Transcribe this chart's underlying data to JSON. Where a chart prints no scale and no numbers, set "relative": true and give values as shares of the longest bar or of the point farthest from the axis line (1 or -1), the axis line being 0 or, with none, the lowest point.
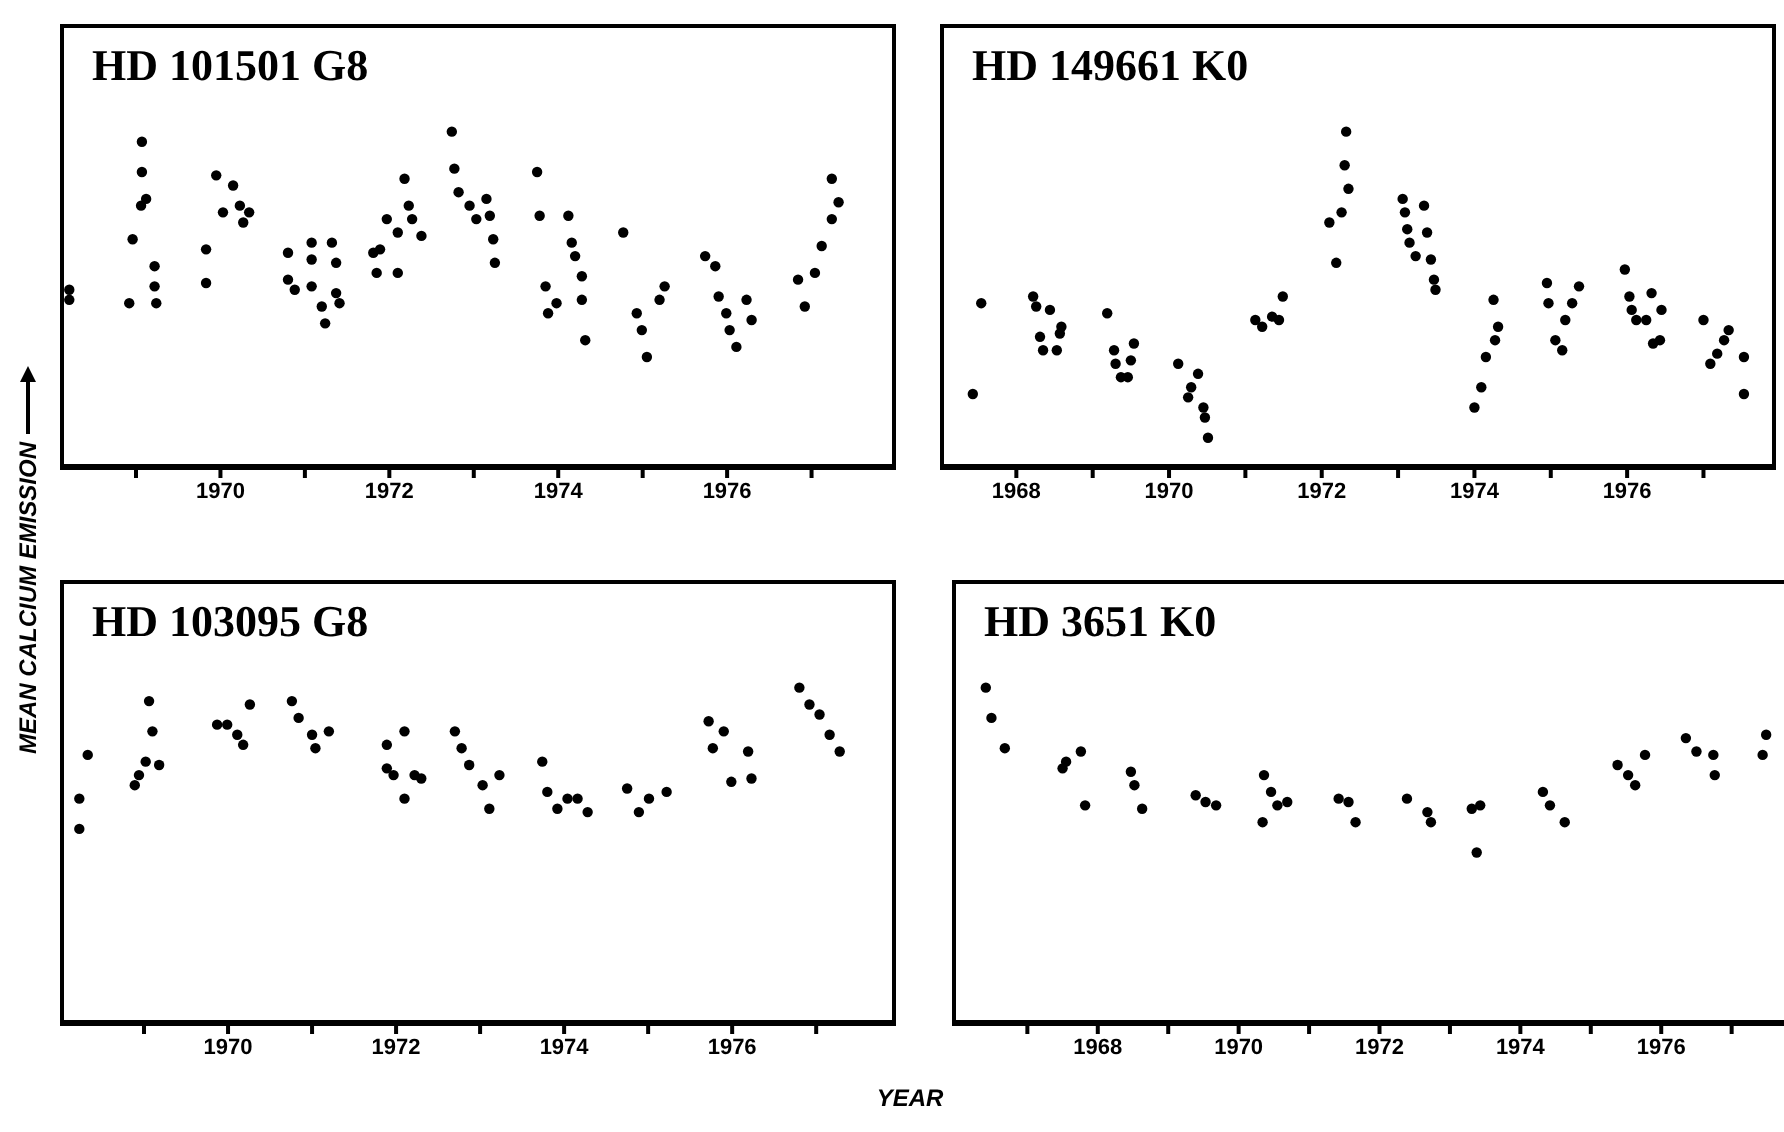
{
  "chart_data": [
    {
      "type": "scatter",
      "title": "HD 101501 G8",
      "ylabel": "MEAN CALCIUM EMISSION",
      "relative": true,
      "marker": "circle",
      "color": "#000000",
      "xlim": [
        1968.1,
        1978.0
      ],
      "xticks": [
        {
          "value": 1969,
          "label": null
        },
        1970,
        {
          "value": 1971,
          "label": null
        },
        1972,
        {
          "value": 1973,
          "label": null
        },
        1974,
        {
          "value": 1975,
          "label": null
        },
        1976,
        {
          "value": 1977,
          "label": null
        }
      ],
      "x": [
        1968.21,
        1968.21,
        1968.92,
        1968.96,
        1969.06,
        1969.07,
        1969.07,
        1969.12,
        1969.22,
        1969.22,
        1969.24,
        1969.83,
        1969.83,
        1969.95,
        1970.03,
        1970.15,
        1970.23,
        1970.27,
        1970.34,
        1970.8,
        1970.8,
        1970.88,
        1971.08,
        1971.08,
        1971.08,
        1971.2,
        1971.24,
        1971.32,
        1971.37,
        1971.37,
        1971.41,
        1971.81,
        1971.89,
        1971.97,
        1971.85,
        1972.1,
        1972.1,
        1972.18,
        1972.23,
        1972.27,
        1972.38,
        1972.74,
        1972.77,
        1972.82,
        1972.95,
        1973.03,
        1973.15,
        1973.19,
        1973.23,
        1973.25,
        1973.75,
        1973.78,
        1973.85,
        1973.88,
        1973.98,
        1974.12,
        1974.16,
        1974.2,
        1974.28,
        1974.28,
        1974.32,
        1974.77,
        1974.93,
        1974.99,
        1975.05,
        1975.2,
        1975.26,
        1975.74,
        1975.86,
        1975.9,
        1975.99,
        1976.03,
        1976.11,
        1976.23,
        1976.29,
        1976.84,
        1976.92,
        1977.04,
        1977.12,
        1977.24,
        1977.32,
        1977.24
      ],
      "values": [
        0.53,
        0.5,
        0.49,
        0.68,
        0.78,
        0.88,
        0.97,
        0.8,
        0.6,
        0.54,
        0.49,
        0.65,
        0.55,
        0.87,
        0.76,
        0.84,
        0.78,
        0.73,
        0.76,
        0.64,
        0.56,
        0.53,
        0.67,
        0.62,
        0.54,
        0.48,
        0.43,
        0.67,
        0.61,
        0.52,
        0.49,
        0.64,
        0.65,
        0.74,
        0.58,
        0.58,
        0.7,
        0.86,
        0.78,
        0.74,
        0.69,
        1.0,
        0.89,
        0.82,
        0.78,
        0.74,
        0.8,
        0.75,
        0.68,
        0.61,
        0.88,
        0.75,
        0.54,
        0.46,
        0.49,
        0.75,
        0.67,
        0.63,
        0.57,
        0.5,
        0.38,
        0.7,
        0.46,
        0.41,
        0.33,
        0.5,
        0.54,
        0.63,
        0.6,
        0.51,
        0.46,
        0.41,
        0.36,
        0.5,
        0.44,
        0.56,
        0.48,
        0.58,
        0.66,
        0.74,
        0.79,
        0.86
      ]
    },
    {
      "type": "scatter",
      "title": "HD 149661 K0",
      "relative": true,
      "marker": "circle",
      "color": "#000000",
      "xlim": [
        1967.0,
        1977.95
      ],
      "xticks": [
        1968,
        {
          "value": 1969,
          "label": null
        },
        1970,
        {
          "value": 1971,
          "label": null
        },
        1972,
        {
          "value": 1973,
          "label": null
        },
        1974,
        {
          "value": 1975,
          "label": null
        },
        1976,
        {
          "value": 1977,
          "label": null
        }
      ],
      "x": [
        1967.43,
        1967.54,
        1968.22,
        1968.26,
        1968.31,
        1968.35,
        1968.44,
        1968.53,
        1968.57,
        1968.59,
        1969.19,
        1969.28,
        1969.3,
        1969.37,
        1969.54,
        1969.5,
        1969.46,
        1970.12,
        1970.25,
        1970.29,
        1970.38,
        1970.45,
        1970.47,
        1970.51,
        1971.13,
        1971.22,
        1971.35,
        1971.49,
        1971.44,
        1972.1,
        1972.19,
        1972.26,
        1972.3,
        1972.32,
        1972.35,
        1973.06,
        1973.09,
        1973.12,
        1973.15,
        1973.23,
        1973.34,
        1973.38,
        1973.43,
        1973.47,
        1973.49,
        1974.0,
        1974.09,
        1974.15,
        1974.27,
        1974.31,
        1974.25,
        1974.95,
        1974.97,
        1975.06,
        1975.15,
        1975.19,
        1975.28,
        1975.37,
        1975.97,
        1976.03,
        1976.06,
        1976.12,
        1976.25,
        1976.32,
        1976.34,
        1976.43,
        1976.45,
        1977.0,
        1977.09,
        1977.18,
        1977.27,
        1977.33,
        1977.53,
        1977.53
      ],
      "values": [
        0.22,
        0.49,
        0.51,
        0.48,
        0.39,
        0.35,
        0.47,
        0.35,
        0.4,
        0.42,
        0.46,
        0.35,
        0.31,
        0.27,
        0.37,
        0.32,
        0.27,
        0.31,
        0.21,
        0.24,
        0.28,
        0.18,
        0.15,
        0.09,
        0.44,
        0.42,
        0.45,
        0.51,
        0.44,
        0.73,
        0.61,
        0.76,
        0.9,
        1.0,
        0.83,
        0.8,
        0.76,
        0.71,
        0.67,
        0.63,
        0.78,
        0.7,
        0.62,
        0.56,
        0.53,
        0.18,
        0.24,
        0.33,
        0.38,
        0.42,
        0.5,
        0.55,
        0.49,
        0.38,
        0.35,
        0.44,
        0.49,
        0.54,
        0.59,
        0.51,
        0.47,
        0.44,
        0.44,
        0.52,
        0.37,
        0.38,
        0.47,
        0.44,
        0.31,
        0.34,
        0.38,
        0.41,
        0.33,
        0.22
      ]
    },
    {
      "type": "scatter",
      "title": "HD 103095 G8",
      "xlabel": "YEAR",
      "relative": true,
      "marker": "circle",
      "color": "#000000",
      "xlim": [
        1968.0,
        1977.95
      ],
      "xticks": [
        {
          "value": 1969,
          "label": null
        },
        1970,
        {
          "value": 1971,
          "label": null
        },
        1972,
        {
          "value": 1973,
          "label": null
        },
        1974,
        {
          "value": 1975,
          "label": null
        },
        1976,
        {
          "value": 1977,
          "label": null
        }
      ],
      "x": [
        1968.23,
        1968.23,
        1968.33,
        1968.89,
        1968.94,
        1969.02,
        1969.1,
        1969.18,
        1969.06,
        1969.87,
        1969.99,
        1970.11,
        1970.18,
        1970.26,
        1970.76,
        1970.84,
        1971.0,
        1971.04,
        1971.2,
        1971.89,
        1971.89,
        1971.97,
        1972.1,
        1972.1,
        1972.22,
        1972.3,
        1972.7,
        1972.78,
        1972.87,
        1973.03,
        1973.11,
        1973.23,
        1973.74,
        1973.8,
        1973.92,
        1974.04,
        1974.16,
        1974.28,
        1974.75,
        1974.89,
        1975.01,
        1975.22,
        1975.72,
        1975.77,
        1975.9,
        1975.99,
        1976.19,
        1976.23,
        1976.8,
        1976.92,
        1977.04,
        1977.16,
        1977.28
      ],
      "values": [
        0.67,
        0.58,
        0.8,
        0.71,
        0.74,
        0.78,
        0.87,
        0.77,
        0.96,
        0.89,
        0.89,
        0.86,
        0.83,
        0.95,
        0.96,
        0.91,
        0.86,
        0.82,
        0.87,
        0.83,
        0.76,
        0.74,
        0.87,
        0.67,
        0.74,
        0.73,
        0.87,
        0.82,
        0.77,
        0.71,
        0.64,
        0.74,
        0.78,
        0.69,
        0.64,
        0.67,
        0.67,
        0.63,
        0.7,
        0.63,
        0.67,
        0.69,
        0.9,
        0.82,
        0.87,
        0.72,
        0.81,
        0.73,
        1.0,
        0.95,
        0.92,
        0.86,
        0.81
      ]
    },
    {
      "type": "scatter",
      "title": "HD 3651 K0",
      "relative": true,
      "marker": "circle",
      "color": "#000000",
      "xlim": [
        1965.93,
        1977.8
      ],
      "xticks": [
        {
          "value": 1967,
          "label": null
        },
        1968,
        {
          "value": 1969,
          "label": null
        },
        1970,
        {
          "value": 1971,
          "label": null
        },
        1972,
        {
          "value": 1973,
          "label": null
        },
        1974,
        {
          "value": 1975,
          "label": null
        },
        1976,
        {
          "value": 1977,
          "label": null
        }
      ],
      "x": [
        1966.41,
        1966.49,
        1966.68,
        1967.5,
        1967.55,
        1967.76,
        1967.82,
        1968.47,
        1968.52,
        1968.63,
        1969.39,
        1969.53,
        1969.68,
        1970.36,
        1970.46,
        1970.55,
        1970.34,
        1970.69,
        1971.42,
        1971.56,
        1971.66,
        1972.39,
        1972.68,
        1972.73,
        1973.31,
        1973.43,
        1973.38,
        1974.32,
        1974.42,
        1974.63,
        1975.38,
        1975.53,
        1975.63,
        1975.77,
        1976.35,
        1976.5,
        1976.74,
        1976.76,
        1977.49,
        1977.44
      ],
      "values": [
        1.0,
        0.91,
        0.82,
        0.76,
        0.78,
        0.81,
        0.65,
        0.75,
        0.71,
        0.64,
        0.68,
        0.66,
        0.65,
        0.74,
        0.69,
        0.65,
        0.6,
        0.66,
        0.67,
        0.66,
        0.6,
        0.67,
        0.63,
        0.6,
        0.64,
        0.65,
        0.51,
        0.69,
        0.65,
        0.6,
        0.77,
        0.74,
        0.71,
        0.8,
        0.85,
        0.81,
        0.8,
        0.74,
        0.86,
        0.8
      ]
    }
  ]
}
